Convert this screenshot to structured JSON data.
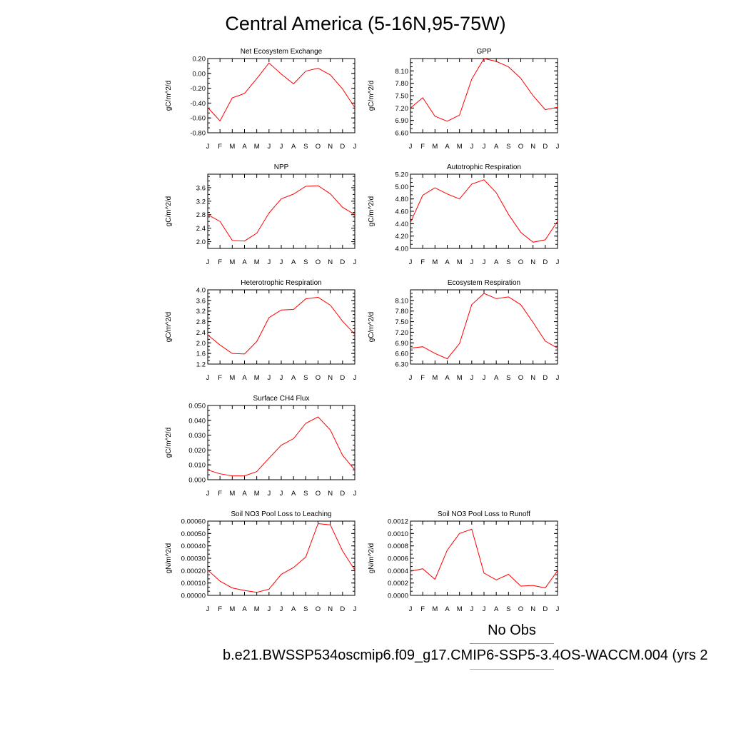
{
  "page_title": "Central America (5-16N,95-75W)",
  "legend": {
    "obs_label": "No Obs",
    "case_label": "b.e21.BWSSP534oscmip6.f09_g17.CMIP6-SSP5-3.4OS-WACCM.004 (yrs 2",
    "obs_color": "#8a8af0",
    "case_color": "#f08a8a"
  },
  "line_color": "#ff0000",
  "chart_data": [
    {
      "type": "line",
      "title": "Net Ecosystem Exchange",
      "ylabel": "gC/m^2/d",
      "xlabel": "",
      "categories": [
        "J",
        "F",
        "M",
        "A",
        "M",
        "J",
        "J",
        "A",
        "S",
        "O",
        "N",
        "D",
        "J"
      ],
      "ylim": [
        -0.8,
        0.2
      ],
      "yticks": [
        "0.20",
        "0.00",
        "-0.20",
        "-0.40",
        "-0.60",
        "-0.80"
      ],
      "series": [
        {
          "name": "model",
          "values": [
            -0.46,
            -0.64,
            -0.33,
            -0.27,
            -0.07,
            0.14,
            -0.01,
            -0.14,
            0.03,
            0.07,
            -0.02,
            -0.21,
            -0.46
          ]
        }
      ]
    },
    {
      "type": "line",
      "title": "GPP",
      "ylabel": "gC/m^2/d",
      "xlabel": "",
      "categories": [
        "J",
        "F",
        "M",
        "A",
        "M",
        "J",
        "J",
        "A",
        "S",
        "O",
        "N",
        "D",
        "J"
      ],
      "ylim": [
        6.6,
        8.4
      ],
      "yticks": [
        "8.10",
        "7.80",
        "7.50",
        "7.20",
        "6.90",
        "6.60"
      ],
      "series": [
        {
          "name": "model",
          "values": [
            7.2,
            7.45,
            7.0,
            6.88,
            7.03,
            7.9,
            8.4,
            8.33,
            8.2,
            7.92,
            7.5,
            7.16,
            7.22
          ]
        }
      ]
    },
    {
      "type": "line",
      "title": "NPP",
      "ylabel": "gC/m^2/d",
      "xlabel": "",
      "categories": [
        "J",
        "F",
        "M",
        "A",
        "M",
        "J",
        "J",
        "A",
        "S",
        "O",
        "N",
        "D",
        "J"
      ],
      "ylim": [
        1.8,
        4.0
      ],
      "yticks": [
        "3.6",
        "3.2",
        "2.8",
        "2.4",
        "2.0"
      ],
      "series": [
        {
          "name": "model",
          "values": [
            2.8,
            2.6,
            2.04,
            2.02,
            2.25,
            2.85,
            3.27,
            3.41,
            3.64,
            3.66,
            3.42,
            3.02,
            2.8
          ]
        }
      ]
    },
    {
      "type": "line",
      "title": "Autotrophic Respiration",
      "ylabel": "gC/m^2/d",
      "xlabel": "",
      "categories": [
        "J",
        "F",
        "M",
        "A",
        "M",
        "J",
        "J",
        "A",
        "S",
        "O",
        "N",
        "D",
        "J"
      ],
      "ylim": [
        4.0,
        5.2
      ],
      "yticks": [
        "5.20",
        "5.00",
        "4.80",
        "4.60",
        "4.40",
        "4.20",
        "4.00"
      ],
      "series": [
        {
          "name": "model",
          "values": [
            4.42,
            4.86,
            4.98,
            4.88,
            4.8,
            5.04,
            5.11,
            4.9,
            4.55,
            4.26,
            4.1,
            4.14,
            4.44
          ]
        }
      ]
    },
    {
      "type": "line",
      "title": "Heterotrophic Respiration",
      "ylabel": "gC/m^2/d",
      "xlabel": "",
      "categories": [
        "J",
        "F",
        "M",
        "A",
        "M",
        "J",
        "J",
        "A",
        "S",
        "O",
        "N",
        "D",
        "J"
      ],
      "ylim": [
        1.2,
        4.0
      ],
      "yticks": [
        "4.0",
        "3.6",
        "3.2",
        "2.8",
        "2.4",
        "2.0",
        "1.6",
        "1.2"
      ],
      "series": [
        {
          "name": "model",
          "values": [
            2.3,
            1.92,
            1.6,
            1.58,
            2.05,
            2.95,
            3.24,
            3.26,
            3.66,
            3.72,
            3.42,
            2.82,
            2.32
          ]
        }
      ]
    },
    {
      "type": "line",
      "title": "Ecosystem Respiration",
      "ylabel": "gC/m^2/d",
      "xlabel": "",
      "categories": [
        "J",
        "F",
        "M",
        "A",
        "M",
        "J",
        "J",
        "A",
        "S",
        "O",
        "N",
        "D",
        "J"
      ],
      "ylim": [
        6.3,
        8.4
      ],
      "yticks": [
        "8.10",
        "7.80",
        "7.50",
        "7.20",
        "6.90",
        "6.60",
        "6.30"
      ],
      "series": [
        {
          "name": "model",
          "values": [
            6.75,
            6.79,
            6.6,
            6.45,
            6.88,
            7.98,
            8.3,
            8.15,
            8.2,
            7.98,
            7.48,
            6.95,
            6.75
          ]
        }
      ]
    },
    {
      "type": "line",
      "title": "Surface CH4 Flux",
      "ylabel": "gC/m^2/d",
      "xlabel": "",
      "categories": [
        "J",
        "F",
        "M",
        "A",
        "M",
        "J",
        "J",
        "A",
        "S",
        "O",
        "N",
        "D",
        "J"
      ],
      "ylim": [
        0.0,
        0.05
      ],
      "yticks": [
        "0.050",
        "0.040",
        "0.030",
        "0.020",
        "0.010",
        "0.000"
      ],
      "series": [
        {
          "name": "model",
          "values": [
            0.0066,
            0.004,
            0.0026,
            0.0026,
            0.0055,
            0.0145,
            0.0232,
            0.0277,
            0.038,
            0.0423,
            0.0335,
            0.0165,
            0.0066
          ]
        }
      ]
    },
    {
      "type": "line",
      "title": "Soil NO3 Pool Loss to Leaching",
      "ylabel": "gN/m^2/d",
      "xlabel": "",
      "categories": [
        "J",
        "F",
        "M",
        "A",
        "M",
        "J",
        "J",
        "A",
        "S",
        "O",
        "N",
        "D",
        "J"
      ],
      "ylim": [
        0.0,
        0.0006
      ],
      "yticks": [
        "0.00060",
        "0.00050",
        "0.00040",
        "0.00030",
        "0.00020",
        "0.00010",
        "0.00000"
      ],
      "series": [
        {
          "name": "model",
          "values": [
            0.000205,
            0.000115,
            6e-05,
            4e-05,
            2.5e-05,
            5e-05,
            0.00017,
            0.000225,
            0.00031,
            0.00058,
            0.00057,
            0.00036,
            0.000205
          ]
        }
      ]
    },
    {
      "type": "line",
      "title": "Soil NO3 Pool Loss to Runoff",
      "ylabel": "gN/m^2/d",
      "xlabel": "",
      "categories": [
        "J",
        "F",
        "M",
        "A",
        "M",
        "J",
        "J",
        "A",
        "S",
        "O",
        "N",
        "D",
        "J"
      ],
      "ylim": [
        0.0,
        0.0012
      ],
      "yticks": [
        "0.0012",
        "0.0010",
        "0.0008",
        "0.0006",
        "0.0004",
        "0.0002",
        "0.0000"
      ],
      "series": [
        {
          "name": "model",
          "values": [
            0.00039,
            0.00043,
            0.00026,
            0.00073,
            0.001,
            0.00107,
            0.00036,
            0.00025,
            0.00034,
            0.00015,
            0.00016,
            0.00012,
            0.0004
          ]
        }
      ]
    }
  ]
}
